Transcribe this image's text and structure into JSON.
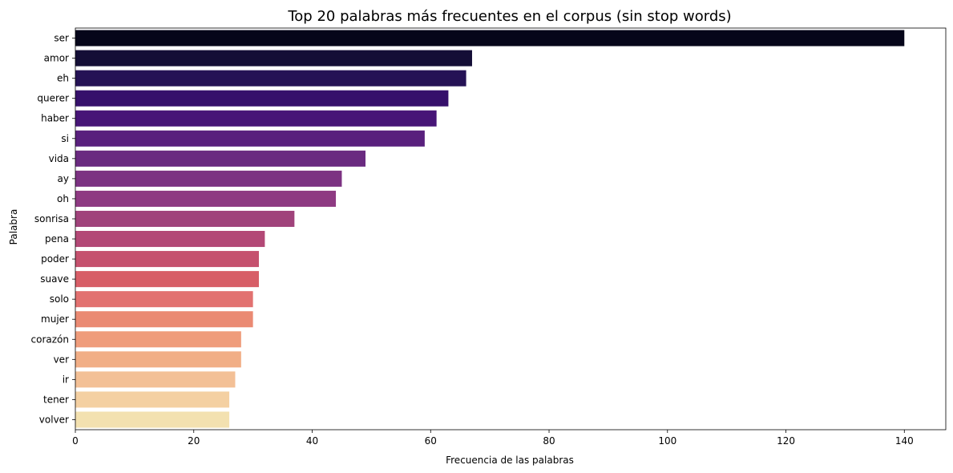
{
  "chart_data": {
    "type": "bar",
    "orientation": "horizontal",
    "title": "Top 20 palabras más frecuentes en el corpus (sin stop words)",
    "xlabel": "Frecuencia de las palabras",
    "ylabel": "Palabra",
    "xlim": [
      0,
      147
    ],
    "xticks": [
      0,
      20,
      40,
      60,
      80,
      100,
      120,
      140
    ],
    "grid": false,
    "palette": "magma",
    "categories": [
      "ser",
      "amor",
      "eh",
      "querer",
      "haber",
      "si",
      "vida",
      "ay",
      "oh",
      "sonrisa",
      "pena",
      "poder",
      "suave",
      "solo",
      "mujer",
      "corazón",
      "ver",
      "ir",
      "tener",
      "volver"
    ],
    "values": [
      140,
      67,
      66,
      63,
      61,
      59,
      49,
      45,
      44,
      37,
      32,
      31,
      31,
      30,
      30,
      28,
      28,
      27,
      26,
      26
    ],
    "colors": [
      "#06061a",
      "#140e36",
      "#251255",
      "#36106b",
      "#471577",
      "#59207d",
      "#6a2a80",
      "#7c3282",
      "#8e3a82",
      "#a0437b",
      "#b34876",
      "#c5516e",
      "#d75e67",
      "#e27170",
      "#ea8a73",
      "#ef9c7b",
      "#f1ae86",
      "#f3c096",
      "#f4d0a2",
      "#f3e1b0"
    ]
  }
}
